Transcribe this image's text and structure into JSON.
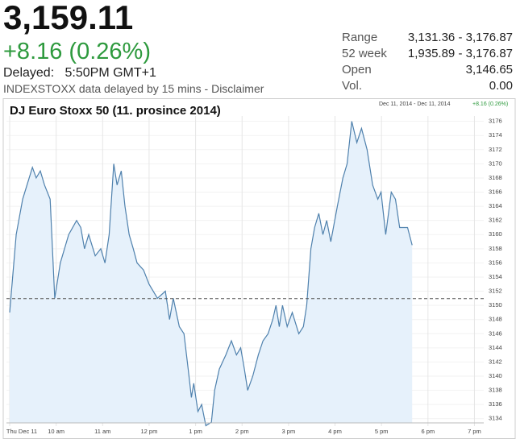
{
  "header": {
    "price": "3,159.11",
    "change": "+8.16 (0.26%)",
    "delayed_label": "Delayed:",
    "delayed_time": "5:50PM GMT+1",
    "disclaimer": "INDEXSTOXX data delayed by 15 mins - Disclaimer"
  },
  "stats": [
    {
      "label": "Range",
      "value": "3,131.36 - 3,176.87"
    },
    {
      "label": "52 week",
      "value": "1,935.89 - 3,176.87"
    },
    {
      "label": "Open",
      "value": "3,146.65"
    },
    {
      "label": "Vol.",
      "value": "0.00"
    }
  ],
  "chart_data": {
    "type": "line",
    "title": "DJ Euro Stoxx 50 (11. prosince 2014)",
    "range_label": "Dec 11, 2014 - Dec 11, 2014",
    "change_label": "+8.16 (0.26%)",
    "x": [
      9.0,
      9.14,
      9.28,
      9.49,
      9.57,
      9.66,
      9.75,
      9.87,
      9.97,
      10.09,
      10.27,
      10.44,
      10.53,
      10.61,
      10.7,
      10.84,
      10.96,
      11.05,
      11.14,
      11.24,
      11.31,
      11.4,
      11.48,
      11.57,
      11.66,
      11.74,
      11.88,
      12.0,
      12.18,
      12.35,
      12.44,
      12.52,
      12.65,
      12.75,
      12.84,
      12.91,
      12.96,
      13.05,
      13.13,
      13.22,
      13.34,
      13.41,
      13.51,
      13.65,
      13.77,
      13.88,
      13.97,
      14.05,
      14.12,
      14.23,
      14.35,
      14.45,
      14.56,
      14.66,
      14.73,
      14.8,
      14.87,
      14.97,
      15.08,
      15.22,
      15.32,
      15.39,
      15.48,
      15.56,
      15.65,
      15.74,
      15.82,
      15.91,
      16.05,
      16.17,
      16.26,
      16.36,
      16.47,
      16.57,
      16.69,
      16.81,
      16.92,
      16.99,
      17.09,
      17.21,
      17.3,
      17.39,
      17.56,
      17.66
    ],
    "values": [
      3149,
      3160,
      3165,
      3169.5,
      3168,
      3169,
      3167,
      3165,
      3151,
      3156,
      3160,
      3162,
      3161,
      3158,
      3160,
      3157,
      3158,
      3156,
      3160,
      3170,
      3167,
      3169,
      3164,
      3160,
      3158,
      3156,
      3155,
      3153,
      3151,
      3152,
      3148,
      3151,
      3147,
      3146,
      3141,
      3137,
      3139,
      3135,
      3136,
      3133,
      3133.5,
      3138,
      3141,
      3143,
      3145,
      3143,
      3144,
      3141,
      3138,
      3140,
      3143,
      3145,
      3146,
      3148,
      3150,
      3147,
      3150,
      3147,
      3149,
      3146,
      3147,
      3150,
      3158,
      3161,
      3163,
      3160,
      3162,
      3159,
      3164,
      3168,
      3170,
      3176,
      3173,
      3175,
      3172,
      3167,
      3165,
      3166,
      3160,
      3166,
      3165,
      3161,
      3161,
      3158.5
    ],
    "color": "#4f81ad",
    "fill": "#e6f1fb",
    "previous_close": 3150.95,
    "xlim": [
      9,
      19.2
    ],
    "ylim": [
      3133.4,
      3176.3
    ],
    "xticks": [
      {
        "value": 9,
        "label": "Thu Dec 11"
      },
      {
        "value": 10,
        "label": "10 am"
      },
      {
        "value": 11,
        "label": "11 am"
      },
      {
        "value": 12,
        "label": "12 pm"
      },
      {
        "value": 13,
        "label": "1 pm"
      },
      {
        "value": 14,
        "label": "2 pm"
      },
      {
        "value": 15,
        "label": "3 pm"
      },
      {
        "value": 16,
        "label": "4 pm"
      },
      {
        "value": 17,
        "label": "5 pm"
      },
      {
        "value": 18,
        "label": "6 pm"
      },
      {
        "value": 19,
        "label": "7 pm"
      }
    ],
    "yticks": [
      3134,
      3136,
      3138,
      3140,
      3142,
      3144,
      3146,
      3148,
      3150,
      3152,
      3154,
      3156,
      3158,
      3160,
      3162,
      3164,
      3166,
      3168,
      3170,
      3172,
      3174,
      3176
    ],
    "grid": true
  }
}
